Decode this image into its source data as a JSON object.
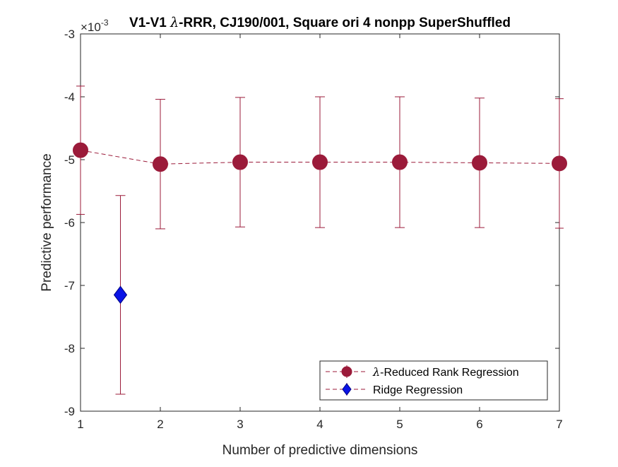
{
  "chart_data": {
    "type": "line",
    "title": "V1-V1 λ-RRR, CJ190/001, Square ori 4 nonpp SuperShuffled",
    "title_parts": {
      "prefix": "V1-V1 ",
      "symbol": "λ",
      "suffix": "-RRR, CJ190/001, Square ori 4 nonpp SuperShuffled"
    },
    "xlabel": "Number of predictive dimensions",
    "ylabel": "Predictive performance",
    "y_exponent_label": "×10",
    "y_exponent_power": "-3",
    "xlim": [
      1,
      7
    ],
    "ylim": [
      -9,
      -3
    ],
    "x_ticks": [
      "1",
      "2",
      "3",
      "4",
      "5",
      "6",
      "7"
    ],
    "y_ticks": [
      "-3",
      "-4",
      "-5",
      "-6",
      "-7",
      "-8",
      "-9"
    ],
    "grid": false,
    "legend_position": "bottom-right",
    "series": [
      {
        "name": "λ-Reduced Rank Regression",
        "name_symbol": "λ",
        "name_text": "-Reduced Rank Regression",
        "color": "#9b1b3a",
        "marker": "circle",
        "line_style": "dashed",
        "points": [
          {
            "x": 1,
            "y": -4.85,
            "err": 1.02
          },
          {
            "x": 2,
            "y": -5.07,
            "err": 1.03
          },
          {
            "x": 3,
            "y": -5.04,
            "err": 1.03
          },
          {
            "x": 4,
            "y": -5.04,
            "err": 1.04
          },
          {
            "x": 5,
            "y": -5.04,
            "err": 1.04
          },
          {
            "x": 6,
            "y": -5.05,
            "err": 1.03
          },
          {
            "x": 7,
            "y": -5.06,
            "err": 1.03
          }
        ]
      },
      {
        "name": "Ridge Regression",
        "color": "#0a14e6",
        "marker": "diamond",
        "line_style": "dashed",
        "points": [
          {
            "x": 1.5,
            "y": -7.15,
            "err": 1.58
          }
        ]
      }
    ]
  }
}
